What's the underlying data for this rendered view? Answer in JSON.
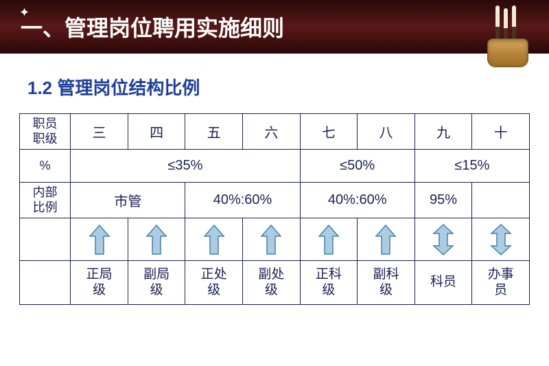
{
  "header": {
    "title": "一、管理岗位聘用实施细则"
  },
  "subtitle": "1.2 管理岗位结构比例",
  "table": {
    "row_labels": {
      "rank": "职员\n职级",
      "percent": "%",
      "internal": "内部\n比例"
    },
    "ranks": [
      "三",
      "四",
      "五",
      "六",
      "七",
      "八",
      "九",
      "十"
    ],
    "percent_groups": [
      {
        "label": "≤35%",
        "span": 4
      },
      {
        "label": "≤50%",
        "span": 2
      },
      {
        "label": "≤15%",
        "span": 2
      }
    ],
    "internal_groups": [
      {
        "label": "市管",
        "span": 2
      },
      {
        "label": "40%:60%",
        "span": 2
      },
      {
        "label": "40%:60%",
        "span": 2
      },
      {
        "label": "95%",
        "span": 1
      },
      {
        "label": "",
        "span": 1
      }
    ],
    "arrows": [
      {
        "type": "up"
      },
      {
        "type": "up"
      },
      {
        "type": "up"
      },
      {
        "type": "up"
      },
      {
        "type": "up"
      },
      {
        "type": "up"
      },
      {
        "type": "updown"
      },
      {
        "type": "updown"
      }
    ],
    "positions": [
      "正局\n级",
      "副局\n级",
      "正处\n级",
      "副处\n级",
      "正科\n级",
      "副科\n级",
      "科员",
      "办事\n员"
    ],
    "colors": {
      "border": "#1a2050",
      "text": "#1a2050",
      "arrow_fill": "#a9cde5",
      "arrow_stroke": "#4b7fa0",
      "header_bg_start": "#2a0808",
      "header_bg_mid": "#5a1818",
      "subtitle_color": "#1e3f9a"
    },
    "fonts": {
      "header_title_size": 32,
      "subtitle_size": 26,
      "cell_size": 20,
      "label_size": 18,
      "position_size": 19
    },
    "col_width_label_pct": 10,
    "col_width_data_pct": 11.25
  }
}
